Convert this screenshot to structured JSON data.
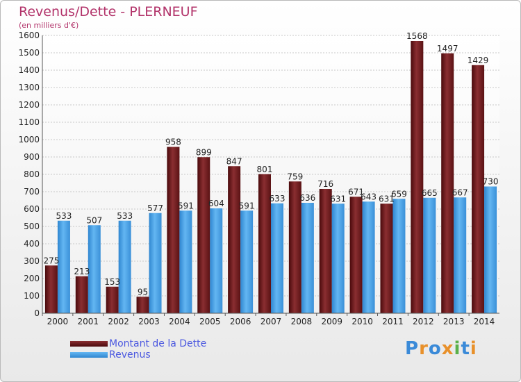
{
  "title": "Revenus/Dette - PLERNEUF",
  "subtitle": "(en milliers d'€)",
  "colors": {
    "dette": "#6b1a1c",
    "revenus": "#3e9be0",
    "title": "#b2336a",
    "legend_text": "#4b58e0"
  },
  "chart_data": {
    "type": "bar",
    "categories": [
      "2000",
      "2001",
      "2002",
      "2003",
      "2004",
      "2005",
      "2006",
      "2007",
      "2008",
      "2009",
      "2010",
      "2011",
      "2012",
      "2013",
      "2014"
    ],
    "series": [
      {
        "name": "Montant de la Dette",
        "values": [
          275,
          213,
          153,
          95,
          958,
          899,
          847,
          801,
          759,
          716,
          671,
          631,
          1568,
          1497,
          1429
        ],
        "labels": [
          "275",
          "213",
          "153",
          "95",
          "958",
          "899",
          "847",
          "801",
          "759",
          "716",
          "671",
          "631",
          "1568",
          "1497",
          "1429"
        ]
      },
      {
        "name": "Revenus",
        "values": [
          533,
          507,
          533,
          577,
          591,
          604,
          591,
          633,
          636,
          631,
          643,
          659,
          665,
          667,
          730
        ],
        "labels": [
          "533",
          "507",
          "533",
          "577",
          "591",
          "604",
          "591",
          "633",
          "636",
          "631",
          "643",
          "659",
          "665",
          "667",
          "730"
        ]
      }
    ],
    "yticks": [
      "0",
      "100",
      "200",
      "300",
      "400",
      "500",
      "600",
      "700",
      "800",
      "900",
      "1000",
      "1100",
      "1200",
      "1300",
      "1400",
      "1500",
      "1600"
    ],
    "ylim": [
      0,
      1600
    ],
    "grid": true,
    "legend": "bottom-left"
  },
  "logo": {
    "letters": [
      "P",
      "r",
      "o",
      "x",
      "i",
      "t",
      "i"
    ],
    "colors": [
      "#3a8ad8",
      "#e8902a",
      "#3a8ad8",
      "#e8902a",
      "#5ab04a",
      "#3a8ad8",
      "#e8902a"
    ]
  }
}
